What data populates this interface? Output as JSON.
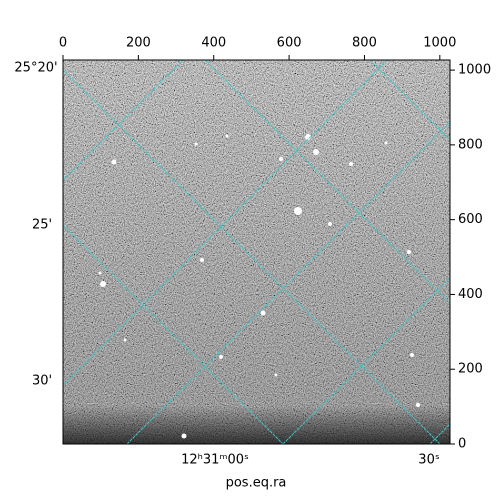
{
  "chart_data": {
    "type": "image",
    "xlabel": "pos.eq.ra",
    "xlim": [
      0,
      1027
    ],
    "xticks": [
      0,
      200,
      400,
      600,
      800,
      1000
    ],
    "ylim": [
      0,
      1027
    ],
    "yticks": [
      0,
      200,
      400,
      600,
      800,
      1000
    ],
    "dec_tick_labels": [
      "25°20'",
      "25'",
      "30'"
    ],
    "ra_tick_labels": [
      "12ʰ31ᵐ00ˢ",
      "30ˢ"
    ],
    "grid_color": "#40c8c8"
  }
}
